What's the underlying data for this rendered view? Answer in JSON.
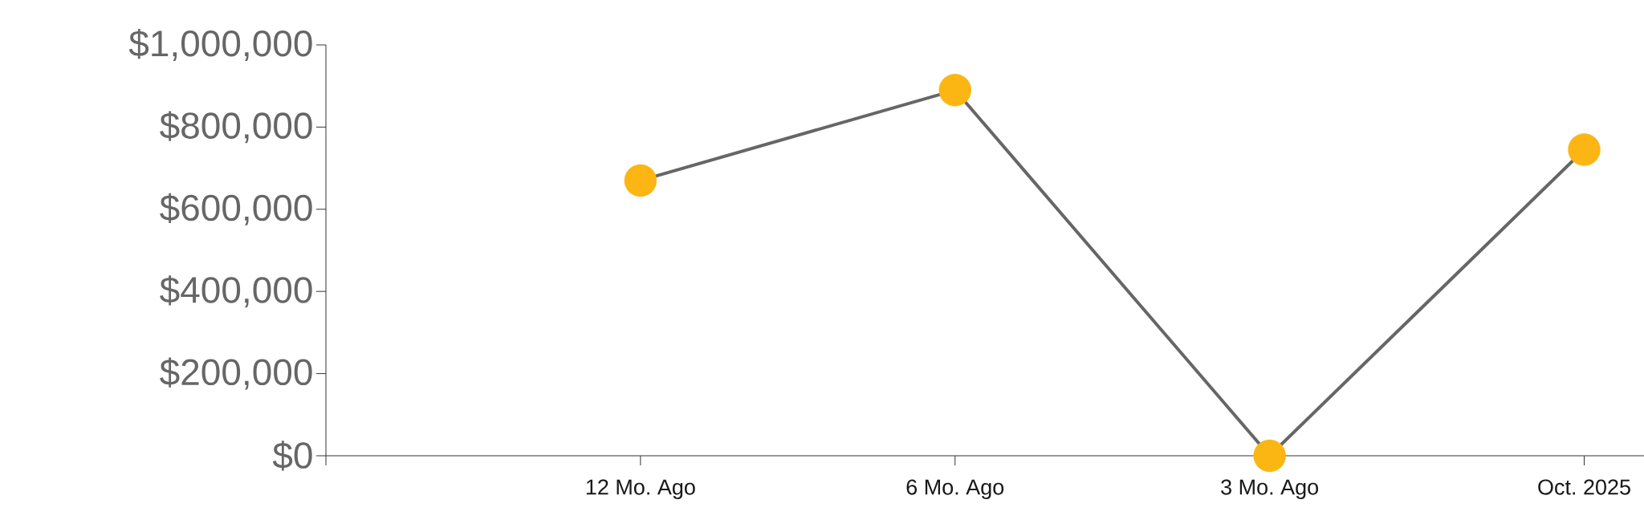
{
  "chart_data": {
    "type": "line",
    "categories": [
      null,
      "12 Mo. Ago",
      "6 Mo. Ago",
      "3 Mo. Ago",
      "Oct. 2025"
    ],
    "values": [
      null,
      670000,
      890000,
      0,
      745000
    ],
    "color": "#666666",
    "colors": [
      null,
      "#fbb614",
      "#fbb614",
      "#fbb614",
      "#fbb614"
    ],
    "marker": "circle",
    "ylim": [
      0,
      1000000
    ],
    "yticks": [
      {
        "value": 0,
        "label": "$0"
      },
      {
        "value": 200000,
        "label": "$200,000"
      },
      {
        "value": 400000,
        "label": "$400,000"
      },
      {
        "value": 600000,
        "label": "$600,000"
      },
      {
        "value": 800000,
        "label": "$800,000"
      },
      {
        "value": 1000000,
        "label": "$1,000,000"
      }
    ],
    "grid": false
  }
}
